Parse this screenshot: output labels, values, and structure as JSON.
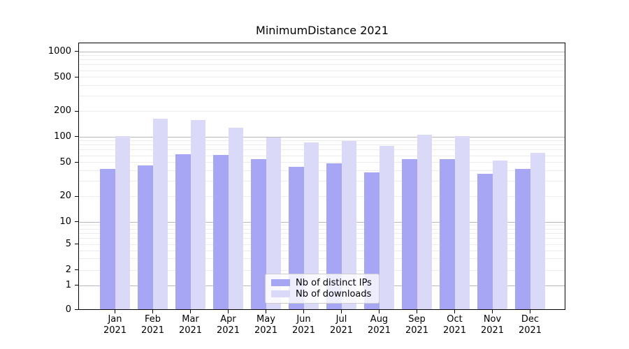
{
  "chart_data": {
    "type": "bar",
    "title": "MinimumDistance 2021",
    "year": "2021",
    "categories": [
      "Jan",
      "Feb",
      "Mar",
      "Apr",
      "May",
      "Jun",
      "Jul",
      "Aug",
      "Sep",
      "Oct",
      "Nov",
      "Dec"
    ],
    "series": [
      {
        "name": "Nb of distinct IPs",
        "color": "#a6a6f4",
        "values": [
          42,
          46,
          62,
          61,
          55,
          44,
          49,
          38,
          55,
          55,
          37,
          42
        ]
      },
      {
        "name": "Nb of downloads",
        "color": "#dadaf8",
        "values": [
          101,
          163,
          156,
          127,
          99,
          86,
          89,
          78,
          106,
          101,
          53,
          65
        ]
      }
    ],
    "yticks": [
      1000,
      500,
      200,
      100,
      50,
      20,
      10,
      5,
      2,
      1,
      0
    ],
    "yscale": "log-with-zero",
    "ylim": [
      0,
      1280
    ],
    "grid": "horizontal major and minor",
    "legend_position": "lower center",
    "colors": {
      "major_grid": "#b9b9b9",
      "minor_grid": "#ececec",
      "axis": "#000000",
      "text": "#000000",
      "background": "#ffffff"
    }
  }
}
